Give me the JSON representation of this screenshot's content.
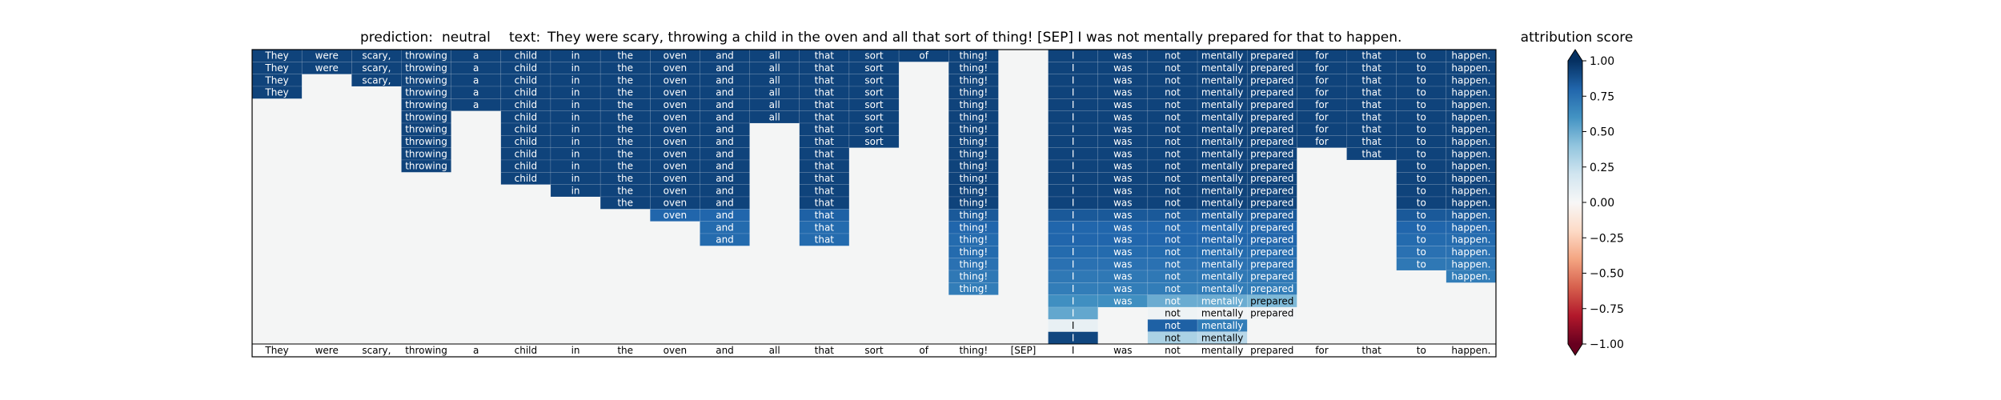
{
  "title": {
    "prediction_label": "prediction:",
    "prediction": "neutral",
    "text_label": "text:",
    "text": "They were scary, throwing a child in the oven and all that sort of thing! [SEP] I was not mentally prepared for that to happen."
  },
  "colorbar": {
    "label": "attribution score",
    "ticks": [
      "1.00",
      "0.75",
      "0.50",
      "0.25",
      "0.00",
      "−0.25",
      "−0.50",
      "−0.75",
      "−1.00"
    ],
    "tick_values": [
      1.0,
      0.75,
      0.5,
      0.25,
      0.0,
      -0.25,
      -0.5,
      -0.75,
      -1.0
    ],
    "colormap": "RdBu",
    "range": [
      -1,
      1
    ]
  },
  "chart_data": {
    "type": "heatmap",
    "tokens": [
      "They",
      "were",
      "scary,",
      "throwing",
      "a",
      "child",
      "in",
      "the",
      "oven",
      "and",
      "all",
      "that",
      "sort",
      "of",
      "thing!",
      "[SEP]",
      "I",
      "was",
      "not",
      "mentally",
      "prepared",
      "for",
      "that",
      "to",
      "happen."
    ],
    "rows": 24,
    "vmin": -1,
    "vmax": 1,
    "background_value": 0.0,
    "columns": [
      [
        0.93,
        0.93,
        0.93,
        0.93
      ],
      [
        0.93,
        0.93
      ],
      [
        0.93,
        0.93,
        0.93
      ],
      [
        0.93,
        0.93,
        0.93,
        0.93,
        0.93,
        0.93,
        0.93,
        0.93,
        0.93,
        0.93
      ],
      [
        0.93,
        0.93,
        0.93,
        0.93,
        0.93
      ],
      [
        0.93,
        0.93,
        0.93,
        0.93,
        0.93,
        0.93,
        0.93,
        0.93,
        0.93,
        0.93,
        0.93
      ],
      [
        0.93,
        0.93,
        0.93,
        0.93,
        0.93,
        0.93,
        0.93,
        0.93,
        0.93,
        0.93,
        0.93,
        0.93
      ],
      [
        0.93,
        0.93,
        0.93,
        0.93,
        0.93,
        0.93,
        0.93,
        0.93,
        0.93,
        0.93,
        0.93,
        0.93,
        0.93
      ],
      [
        0.93,
        0.93,
        0.93,
        0.93,
        0.93,
        0.93,
        0.93,
        0.93,
        0.93,
        0.93,
        0.93,
        0.93,
        0.93,
        0.8
      ],
      [
        0.93,
        0.93,
        0.93,
        0.93,
        0.93,
        0.93,
        0.93,
        0.93,
        0.93,
        0.93,
        0.93,
        0.93,
        0.93,
        0.8,
        0.78,
        0.78
      ],
      [
        0.93,
        0.93,
        0.93,
        0.93,
        0.93,
        0.93
      ],
      [
        0.93,
        0.93,
        0.93,
        0.93,
        0.93,
        0.93,
        0.93,
        0.93,
        0.93,
        0.93,
        0.93,
        0.93,
        0.93,
        0.82,
        0.78,
        0.78
      ],
      [
        0.93,
        0.93,
        0.93,
        0.93,
        0.93,
        0.93,
        0.93,
        0.93
      ],
      [
        0.93
      ],
      [
        0.93,
        0.93,
        0.93,
        0.93,
        0.93,
        0.93,
        0.93,
        0.93,
        0.93,
        0.93,
        0.93,
        0.93,
        0.93,
        0.85,
        0.8,
        0.78,
        0.78,
        0.75,
        0.72,
        0.7
      ],
      [],
      [
        0.93,
        0.93,
        0.93,
        0.93,
        0.93,
        0.93,
        0.93,
        0.93,
        0.93,
        0.93,
        0.93,
        0.93,
        0.93,
        0.85,
        0.8,
        0.8,
        0.78,
        0.75,
        0.72,
        0.7,
        0.62,
        0.52,
        0.08,
        0.92
      ],
      [
        0.93,
        0.93,
        0.93,
        0.93,
        0.93,
        0.93,
        0.93,
        0.93,
        0.93,
        0.93,
        0.93,
        0.93,
        0.93,
        0.85,
        0.8,
        0.8,
        0.78,
        0.75,
        0.72,
        0.7,
        0.62
      ],
      [
        0.93,
        0.93,
        0.93,
        0.93,
        0.93,
        0.93,
        0.93,
        0.93,
        0.93,
        0.93,
        0.93,
        0.93,
        0.93,
        0.85,
        0.8,
        0.8,
        0.78,
        0.75,
        0.72,
        0.7,
        0.5,
        0.05,
        0.82,
        0.32
      ],
      [
        0.93,
        0.93,
        0.93,
        0.93,
        0.93,
        0.93,
        0.93,
        0.93,
        0.93,
        0.93,
        0.93,
        0.93,
        0.93,
        0.85,
        0.8,
        0.8,
        0.78,
        0.75,
        0.72,
        0.7,
        0.5,
        0.03,
        0.7,
        0.28
      ],
      [
        0.93,
        0.93,
        0.93,
        0.93,
        0.93,
        0.93,
        0.93,
        0.93,
        0.93,
        0.93,
        0.93,
        0.93,
        0.93,
        0.85,
        0.8,
        0.8,
        0.78,
        0.75,
        0.72,
        0.7,
        0.45,
        0.03
      ],
      [
        0.93,
        0.93,
        0.93,
        0.93,
        0.93,
        0.93,
        0.93,
        0.93
      ],
      [
        0.93,
        0.93,
        0.93,
        0.93,
        0.93,
        0.93,
        0.93,
        0.93,
        0.93
      ],
      [
        0.93,
        0.93,
        0.93,
        0.93,
        0.93,
        0.93,
        0.93,
        0.93,
        0.93,
        0.93,
        0.93,
        0.93,
        0.93,
        0.85,
        0.8,
        0.78,
        0.75,
        0.72
      ],
      [
        0.93,
        0.93,
        0.93,
        0.93,
        0.93,
        0.93,
        0.93,
        0.93,
        0.93,
        0.93,
        0.93,
        0.93,
        0.93,
        0.85,
        0.8,
        0.78,
        0.75,
        0.72,
        0.7
      ]
    ]
  }
}
